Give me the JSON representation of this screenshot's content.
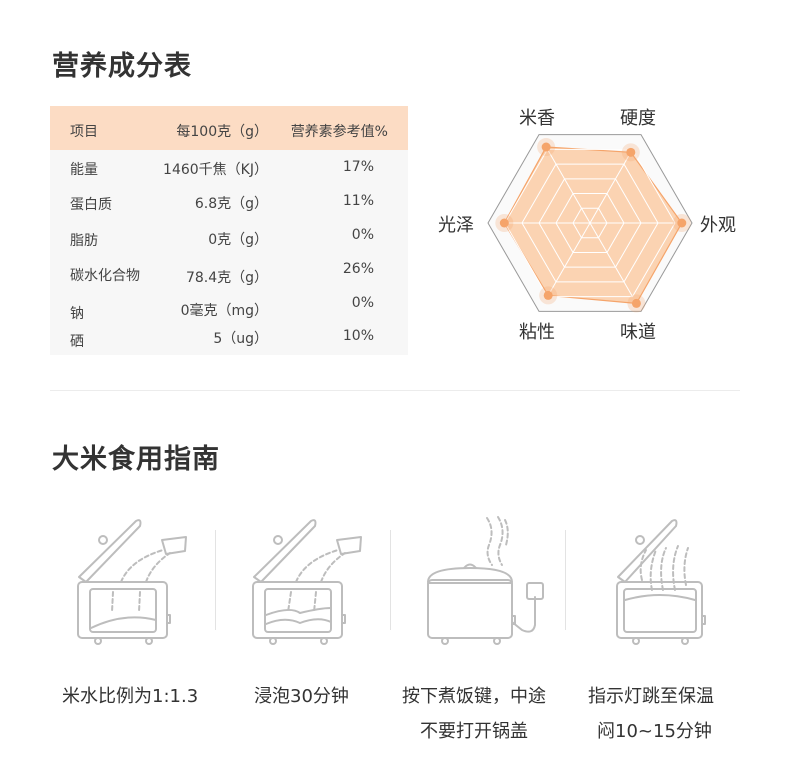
{
  "nutrition": {
    "title": "营养成分表",
    "headers": [
      "项目",
      "每100克（g）",
      "营养素参考值%"
    ],
    "rows": [
      [
        "能量",
        "1460千焦（KJ）",
        "17%"
      ],
      [
        "蛋白质",
        "6.8克（g）",
        "11%"
      ],
      [
        "脂肪",
        "0克（g）",
        "0%"
      ],
      [
        "碳水化合物",
        "78.4克（g）",
        "26%"
      ],
      [
        "钠",
        "0毫克（mg）",
        "0%"
      ],
      [
        "硒",
        "5（ug）",
        "10%"
      ]
    ]
  },
  "chart_data": {
    "type": "radar",
    "categories": [
      "米香",
      "硬度",
      "外观",
      "味道",
      "粘性",
      "光泽"
    ],
    "values": [
      0.86,
      0.8,
      0.9,
      0.91,
      0.82,
      0.84
    ],
    "range": [
      0,
      1
    ],
    "colors": {
      "fill": "#fbc59a",
      "line": "#f5a46a",
      "point": "#f5a46a"
    }
  },
  "guide": {
    "title": "大米食用指南",
    "steps": [
      {
        "icon": "rice-cooker-add-rice-icon",
        "line1": "米水比例为1:1.3",
        "line2": ""
      },
      {
        "icon": "rice-cooker-soak-icon",
        "line1": "浸泡30分钟",
        "line2": ""
      },
      {
        "icon": "rice-cooker-cooking-icon",
        "line1": "按下煮饭键，中途",
        "line2": "不要打开锅盖"
      },
      {
        "icon": "rice-cooker-steam-icon",
        "line1": "指示灯跳至保温",
        "line2": "闷10~15分钟"
      }
    ]
  },
  "colors": {
    "header_bg": "#fcdcc4",
    "table_bg": "#f7f7f7",
    "icon_stroke": "#bdbdbd"
  }
}
